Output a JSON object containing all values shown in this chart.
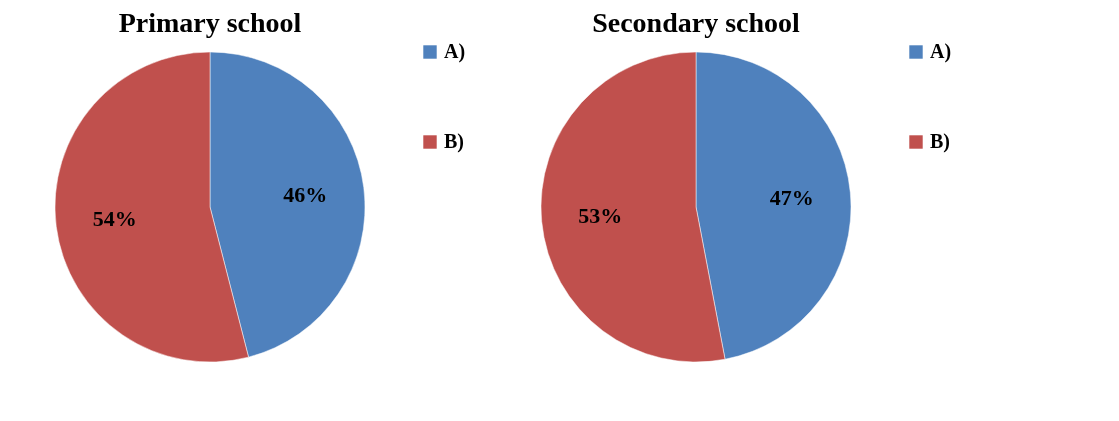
{
  "chart_data": [
    {
      "type": "pie",
      "title": "Primary school",
      "categories": [
        "A)",
        "B)"
      ],
      "values": [
        46,
        54
      ],
      "colors": [
        "#4f81bd",
        "#c0504d"
      ],
      "value_labels": [
        "46%",
        "54%"
      ],
      "legend": "right"
    },
    {
      "type": "pie",
      "title": "Secondary school",
      "categories": [
        "A)",
        "B)"
      ],
      "values": [
        47,
        53
      ],
      "colors": [
        "#4f81bd",
        "#c0504d"
      ],
      "value_labels": [
        "47%",
        "53%"
      ],
      "legend": "right"
    }
  ]
}
